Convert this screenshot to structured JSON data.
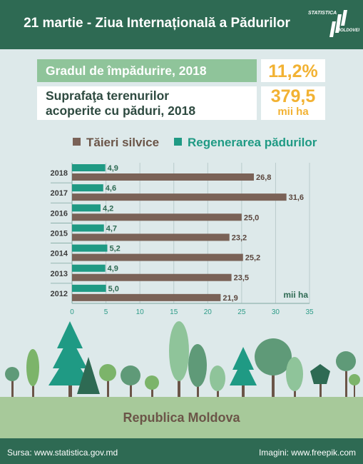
{
  "header": {
    "title": "21 martie - Ziua Internațională a Pădurilor",
    "logo_line1": "STATISTICA",
    "logo_line2": "MOLDOVEI"
  },
  "stats": {
    "afforestation_label": "Gradul de împădurire, 2018",
    "afforestation_value": "11,2%",
    "forest_area_label_line1": "Suprafaţa terenurilor",
    "forest_area_label_line2": "acoperite cu păduri,  2018",
    "forest_area_value": "379,5",
    "forest_area_unit": "mii ha"
  },
  "colors": {
    "header_bg": "#2e6a53",
    "cutting": "#7a6257",
    "regeneration": "#1f9a84",
    "stat_value": "#f2b233",
    "stat_label_bg": "#8fc49a"
  },
  "chart_data": {
    "type": "bar",
    "orientation": "horizontal",
    "categories": [
      "2018",
      "2017",
      "2016",
      "2015",
      "2014",
      "2013",
      "2012"
    ],
    "series": [
      {
        "name": "Tăieri silvice",
        "values": [
          26.8,
          31.6,
          25.0,
          23.2,
          25.2,
          23.5,
          21.9
        ],
        "labels": [
          "26,8",
          "31,6",
          "25,0",
          "23,2",
          "25,2",
          "23,5",
          "21,9"
        ]
      },
      {
        "name": "Regenerarea pădurilor",
        "values": [
          4.9,
          4.6,
          4.2,
          4.7,
          5.2,
          4.9,
          5.0
        ],
        "labels": [
          "4,9",
          "4,6",
          "4,2",
          "4,7",
          "5,2",
          "4,9",
          "5,0"
        ]
      }
    ],
    "xlim": [
      0,
      35
    ],
    "xticks": [
      "0",
      "5",
      "10",
      "15",
      "20",
      "25",
      "30",
      "35"
    ],
    "unit_label": "mii ha",
    "grid": true,
    "legend": "top"
  },
  "footer": {
    "country": "Republica Moldova",
    "source": "Sursa: www.statistica.gov.md",
    "credit": "Imagini: www.freepik.com"
  }
}
